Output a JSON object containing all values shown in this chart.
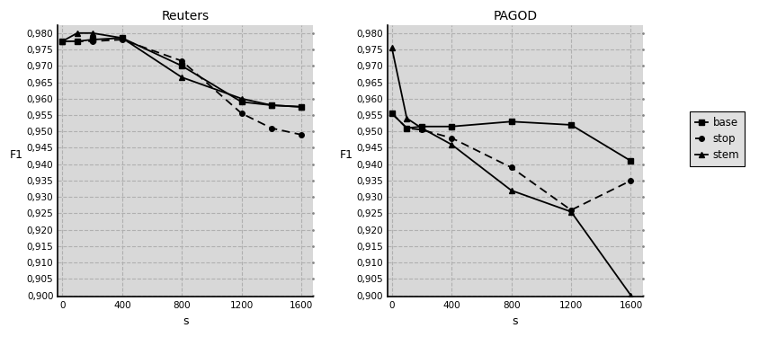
{
  "reuters": {
    "title": "Reuters",
    "s_values": [
      0,
      100,
      200,
      400,
      800,
      1200,
      1400,
      1600
    ],
    "base": [
      0.9775,
      0.9775,
      0.978,
      0.9785,
      0.97,
      0.959,
      0.958,
      0.9575
    ],
    "stop": [
      0.9775,
      0.9775,
      0.9775,
      0.978,
      0.9715,
      0.9555,
      0.951,
      0.949
    ],
    "stem": [
      0.9775,
      0.98,
      0.98,
      0.9785,
      0.9665,
      0.96,
      0.958,
      0.9575
    ]
  },
  "pagod": {
    "title": "PAGOD",
    "s_values": [
      0,
      100,
      200,
      400,
      800,
      1200,
      1600
    ],
    "base": [
      0.9555,
      0.951,
      0.9515,
      0.9515,
      0.953,
      0.952,
      0.941
    ],
    "stop": [
      0.9555,
      0.951,
      0.9505,
      0.948,
      0.939,
      0.926,
      0.935
    ],
    "stem": [
      0.9755,
      0.954,
      0.951,
      0.946,
      0.932,
      0.9255,
      0.9
    ]
  },
  "ylim": [
    0.8995,
    0.9825
  ],
  "yticks": [
    0.9,
    0.905,
    0.91,
    0.915,
    0.92,
    0.925,
    0.93,
    0.935,
    0.94,
    0.945,
    0.95,
    0.955,
    0.96,
    0.965,
    0.97,
    0.975,
    0.98
  ],
  "xticks": [
    0,
    400,
    800,
    1200,
    1600
  ],
  "xlabel": "s",
  "ylabel": "F1",
  "legend_labels": [
    "base",
    "stop",
    "stem"
  ],
  "grid_color": "#b0b0b0",
  "bg_color": "#d8d8d8",
  "dot_color": "#cccccc"
}
